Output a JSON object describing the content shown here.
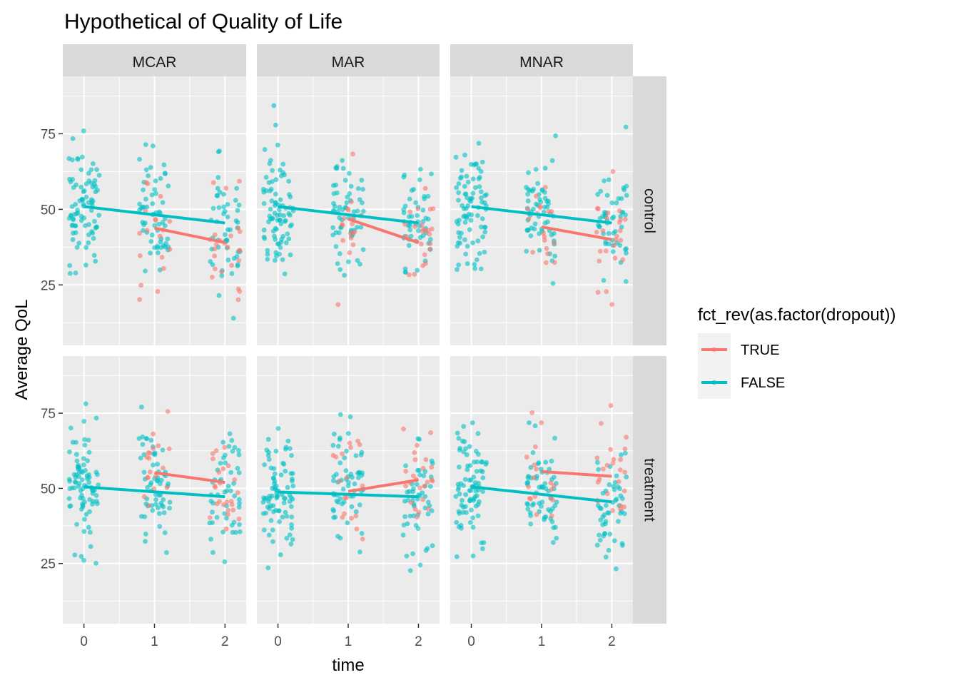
{
  "chart_data": {
    "type": "scatter",
    "title": "Hypothetical of Quality of Life",
    "xlabel": "time",
    "ylabel": "Average QoL",
    "col_facets": [
      "MCAR",
      "MAR",
      "MNAR"
    ],
    "row_facets": [
      "control",
      "treatment"
    ],
    "x_ticks": [
      "0",
      "1",
      "2"
    ],
    "y_ticks": [
      "25",
      "50",
      "75"
    ],
    "xlim": [
      -0.3,
      2.3
    ],
    "ylim": [
      5,
      94
    ],
    "grid": true,
    "legend": {
      "title": "fct_rev(as.factor(dropout))",
      "position": "right",
      "entries": [
        {
          "label": "TRUE",
          "color": "#F8766D"
        },
        {
          "label": "FALSE",
          "color": "#00BFC4"
        }
      ]
    },
    "colors": {
      "TRUE": "#F8766D",
      "FALSE": "#00BFC4",
      "panel_bg": "#EBEBEB",
      "strip_bg": "#D9D9D9"
    },
    "trend_lines": [
      {
        "mechanism": "MCAR",
        "group": "control",
        "dropout": "FALSE",
        "x": [
          0,
          2
        ],
        "y": [
          50.9,
          45.5
        ]
      },
      {
        "mechanism": "MCAR",
        "group": "control",
        "dropout": "TRUE",
        "x": [
          1,
          2
        ],
        "y": [
          43.8,
          39.0
        ]
      },
      {
        "mechanism": "MAR",
        "group": "control",
        "dropout": "FALSE",
        "x": [
          0,
          2
        ],
        "y": [
          50.9,
          45.5
        ]
      },
      {
        "mechanism": "MAR",
        "group": "control",
        "dropout": "TRUE",
        "x": [
          1,
          2
        ],
        "y": [
          46.8,
          39.0
        ]
      },
      {
        "mechanism": "MNAR",
        "group": "control",
        "dropout": "FALSE",
        "x": [
          0,
          2
        ],
        "y": [
          50.9,
          45.5
        ]
      },
      {
        "mechanism": "MNAR",
        "group": "control",
        "dropout": "TRUE",
        "x": [
          1,
          2
        ],
        "y": [
          44.2,
          40.0
        ]
      },
      {
        "mechanism": "MCAR",
        "group": "treatment",
        "dropout": "FALSE",
        "x": [
          0,
          2
        ],
        "y": [
          50.5,
          47.2
        ]
      },
      {
        "mechanism": "MCAR",
        "group": "treatment",
        "dropout": "TRUE",
        "x": [
          1,
          2
        ],
        "y": [
          55.2,
          52.0
        ]
      },
      {
        "mechanism": "MAR",
        "group": "treatment",
        "dropout": "FALSE",
        "x": [
          0,
          2
        ],
        "y": [
          48.8,
          47.2
        ]
      },
      {
        "mechanism": "MAR",
        "group": "treatment",
        "dropout": "TRUE",
        "x": [
          1,
          2
        ],
        "y": [
          49.0,
          52.8
        ]
      },
      {
        "mechanism": "MNAR",
        "group": "treatment",
        "dropout": "FALSE",
        "x": [
          0,
          2
        ],
        "y": [
          50.5,
          45.5
        ]
      },
      {
        "mechanism": "MNAR",
        "group": "treatment",
        "dropout": "TRUE",
        "x": [
          1,
          2
        ],
        "y": [
          55.6,
          54.0
        ]
      }
    ],
    "points_note": "",
    "series": [
      {
        "name": "TRUE",
        "values": []
      },
      {
        "name": "FALSE",
        "values": []
      }
    ]
  }
}
